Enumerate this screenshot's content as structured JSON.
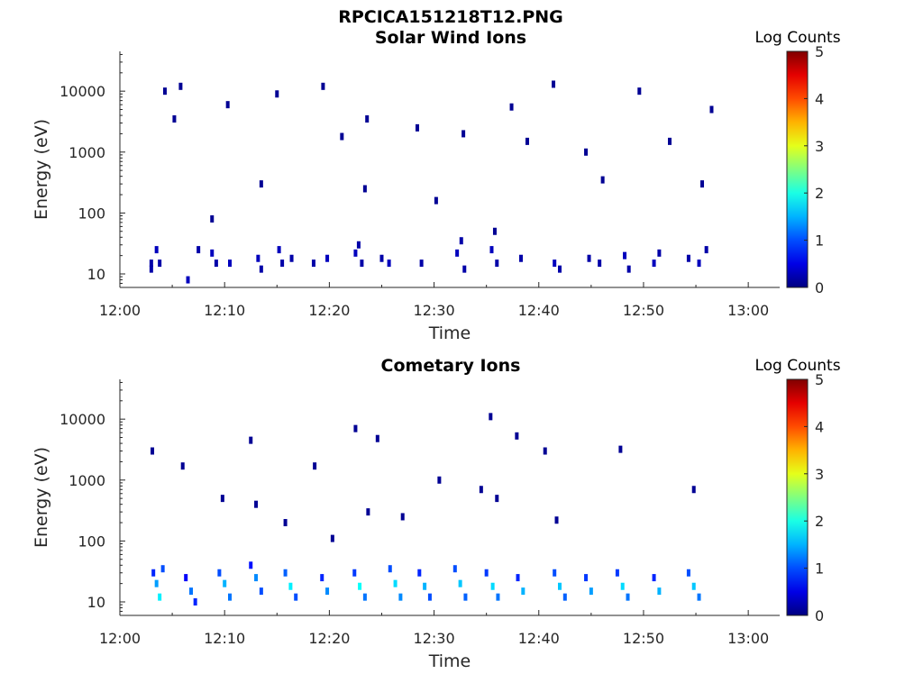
{
  "figure_title": "RPCICA151218T12.PNG",
  "colors": {
    "colormap": "jet",
    "frame": "#262626",
    "background": "#ffffff"
  },
  "chart_data": [
    {
      "type": "heatmap",
      "title": "Solar Wind Ions",
      "xlabel": "Time",
      "ylabel": "Energy (eV)",
      "x_tick_labels": [
        "12:00",
        "12:10",
        "12:20",
        "12:30",
        "12:40",
        "12:50",
        "13:00"
      ],
      "y_tick_labels": [
        "10",
        "100",
        "1000",
        "10000"
      ],
      "y_scale": "log",
      "ylim": [
        6,
        45000
      ],
      "xlim_minutes": [
        0,
        63
      ],
      "colorbar": {
        "label": "Log Counts",
        "ticks": [
          "0",
          "1",
          "2",
          "3",
          "4",
          "5"
        ],
        "range": [
          0,
          5
        ]
      },
      "cells": [
        [
          3,
          15,
          0.2
        ],
        [
          3,
          12,
          0.2
        ],
        [
          3.5,
          25,
          0.3
        ],
        [
          3.8,
          15,
          0.2
        ],
        [
          6.5,
          8,
          0.3
        ],
        [
          7.5,
          25,
          0.2
        ],
        [
          8.8,
          22,
          0.3
        ],
        [
          9.2,
          15,
          0.2
        ],
        [
          10.5,
          15,
          0.3
        ],
        [
          13.2,
          18,
          0.3
        ],
        [
          13.5,
          12,
          0.2
        ],
        [
          15.2,
          25,
          0.3
        ],
        [
          15.5,
          15,
          0.2
        ],
        [
          16.4,
          18,
          0.2
        ],
        [
          18.5,
          15,
          0.2
        ],
        [
          19.8,
          18,
          0.3
        ],
        [
          22.5,
          22,
          0.3
        ],
        [
          22.8,
          30,
          0.2
        ],
        [
          23.1,
          15,
          0.2
        ],
        [
          25,
          18,
          0.2
        ],
        [
          25.7,
          15,
          0.3
        ],
        [
          28.8,
          15,
          0.2
        ],
        [
          32.2,
          22,
          0.3
        ],
        [
          32.6,
          35,
          0.2
        ],
        [
          32.9,
          12,
          0.2
        ],
        [
          35.5,
          25,
          0.3
        ],
        [
          36,
          15,
          0.2
        ],
        [
          38.3,
          18,
          0.2
        ],
        [
          41.5,
          15,
          0.3
        ],
        [
          42,
          12,
          0.2
        ],
        [
          44.8,
          18,
          0.2
        ],
        [
          45.8,
          15,
          0.2
        ],
        [
          48.2,
          20,
          0.3
        ],
        [
          48.6,
          12,
          0.2
        ],
        [
          51,
          15,
          0.3
        ],
        [
          51.5,
          22,
          0.2
        ],
        [
          54.3,
          18,
          0.2
        ],
        [
          55.3,
          15,
          0.3
        ],
        [
          56,
          25,
          0.2
        ],
        [
          4.3,
          10000,
          0.1
        ],
        [
          5.8,
          12000,
          0.1
        ],
        [
          5.2,
          3500,
          0.1
        ],
        [
          10.3,
          6000,
          0.1
        ],
        [
          15,
          9000,
          0.1
        ],
        [
          19.4,
          12000,
          0.1
        ],
        [
          23.6,
          3500,
          0.1
        ],
        [
          28.4,
          2500,
          0.1
        ],
        [
          32.8,
          2000,
          0.1
        ],
        [
          37.4,
          5500,
          0.1
        ],
        [
          41.4,
          13000,
          0.1
        ],
        [
          44.5,
          1000,
          0.1
        ],
        [
          49.6,
          10000,
          0.1
        ],
        [
          52.5,
          1500,
          0.1
        ],
        [
          56.5,
          5000,
          0.1
        ],
        [
          23.4,
          250,
          0.1
        ],
        [
          35.8,
          50,
          0.1
        ],
        [
          46.1,
          350,
          0.1
        ],
        [
          55.6,
          300,
          0.1
        ],
        [
          30.2,
          160,
          0.1
        ],
        [
          13.5,
          300,
          0.1
        ],
        [
          8.8,
          80,
          0.1
        ],
        [
          21.2,
          1800,
          0.1
        ],
        [
          38.9,
          1500,
          0.1
        ]
      ]
    },
    {
      "type": "heatmap",
      "title": "Cometary Ions",
      "xlabel": "Time",
      "ylabel": "Energy (eV)",
      "x_tick_labels": [
        "12:00",
        "12:10",
        "12:20",
        "12:30",
        "12:40",
        "12:50",
        "13:00"
      ],
      "y_tick_labels": [
        "10",
        "100",
        "1000",
        "10000"
      ],
      "y_scale": "log",
      "ylim": [
        6,
        45000
      ],
      "xlim_minutes": [
        0,
        63
      ],
      "colorbar": {
        "label": "Log Counts",
        "ticks": [
          "0",
          "1",
          "2",
          "3",
          "4",
          "5"
        ],
        "range": [
          0,
          5
        ]
      },
      "cells": [
        [
          3.2,
          30,
          0.8
        ],
        [
          3.5,
          20,
          1.4
        ],
        [
          3.8,
          12,
          1.8
        ],
        [
          4.1,
          35,
          1.0
        ],
        [
          6.3,
          25,
          0.6
        ],
        [
          6.8,
          15,
          1.2
        ],
        [
          7.2,
          10,
          0.8
        ],
        [
          9.5,
          30,
          1.0
        ],
        [
          10,
          20,
          1.5
        ],
        [
          10.5,
          12,
          1.2
        ],
        [
          12.5,
          40,
          0.7
        ],
        [
          13,
          25,
          1.3
        ],
        [
          13.5,
          15,
          1.0
        ],
        [
          15.8,
          30,
          1.1
        ],
        [
          16.3,
          18,
          1.8
        ],
        [
          16.8,
          12,
          1.0
        ],
        [
          19.3,
          25,
          0.8
        ],
        [
          19.8,
          15,
          1.3
        ],
        [
          22.4,
          30,
          0.9
        ],
        [
          22.9,
          18,
          1.9
        ],
        [
          23.4,
          12,
          1.2
        ],
        [
          25.8,
          35,
          1.0
        ],
        [
          26.3,
          20,
          1.7
        ],
        [
          26.8,
          12,
          1.3
        ],
        [
          28.6,
          30,
          0.8
        ],
        [
          29.1,
          18,
          1.5
        ],
        [
          29.6,
          12,
          1.0
        ],
        [
          32,
          35,
          1.0
        ],
        [
          32.5,
          20,
          1.6
        ],
        [
          33,
          12,
          1.1
        ],
        [
          35,
          30,
          0.9
        ],
        [
          35.6,
          18,
          1.7
        ],
        [
          36.1,
          12,
          1.2
        ],
        [
          38,
          25,
          0.8
        ],
        [
          38.5,
          15,
          1.5
        ],
        [
          41.5,
          30,
          1.0
        ],
        [
          42,
          18,
          1.6
        ],
        [
          42.5,
          12,
          1.1
        ],
        [
          44.5,
          25,
          0.9
        ],
        [
          45,
          15,
          1.4
        ],
        [
          47.5,
          30,
          0.9
        ],
        [
          48,
          18,
          1.7
        ],
        [
          48.5,
          12,
          1.2
        ],
        [
          51,
          25,
          0.8
        ],
        [
          51.5,
          15,
          1.5
        ],
        [
          54.3,
          30,
          1.0
        ],
        [
          54.8,
          18,
          1.6
        ],
        [
          55.3,
          12,
          1.2
        ],
        [
          3.1,
          3000,
          0.1
        ],
        [
          6,
          1700,
          0.1
        ],
        [
          12.5,
          4500,
          0.1
        ],
        [
          18.6,
          1700,
          0.1
        ],
        [
          22.5,
          7000,
          0.1
        ],
        [
          24.6,
          4800,
          0.1
        ],
        [
          30.5,
          1000,
          0.1
        ],
        [
          35.4,
          11000,
          0.1
        ],
        [
          37.9,
          5300,
          0.1
        ],
        [
          40.6,
          3000,
          0.1
        ],
        [
          47.8,
          3200,
          0.1
        ],
        [
          13,
          400,
          0.1
        ],
        [
          23.7,
          300,
          0.1
        ],
        [
          27,
          250,
          0.1
        ],
        [
          34.5,
          700,
          0.1
        ],
        [
          36,
          500,
          0.1
        ],
        [
          41.7,
          220,
          0.1
        ],
        [
          54.8,
          700,
          0.1
        ],
        [
          9.8,
          500,
          0.1
        ],
        [
          15.8,
          200,
          0.1
        ],
        [
          20.3,
          110,
          0.1
        ]
      ]
    }
  ]
}
